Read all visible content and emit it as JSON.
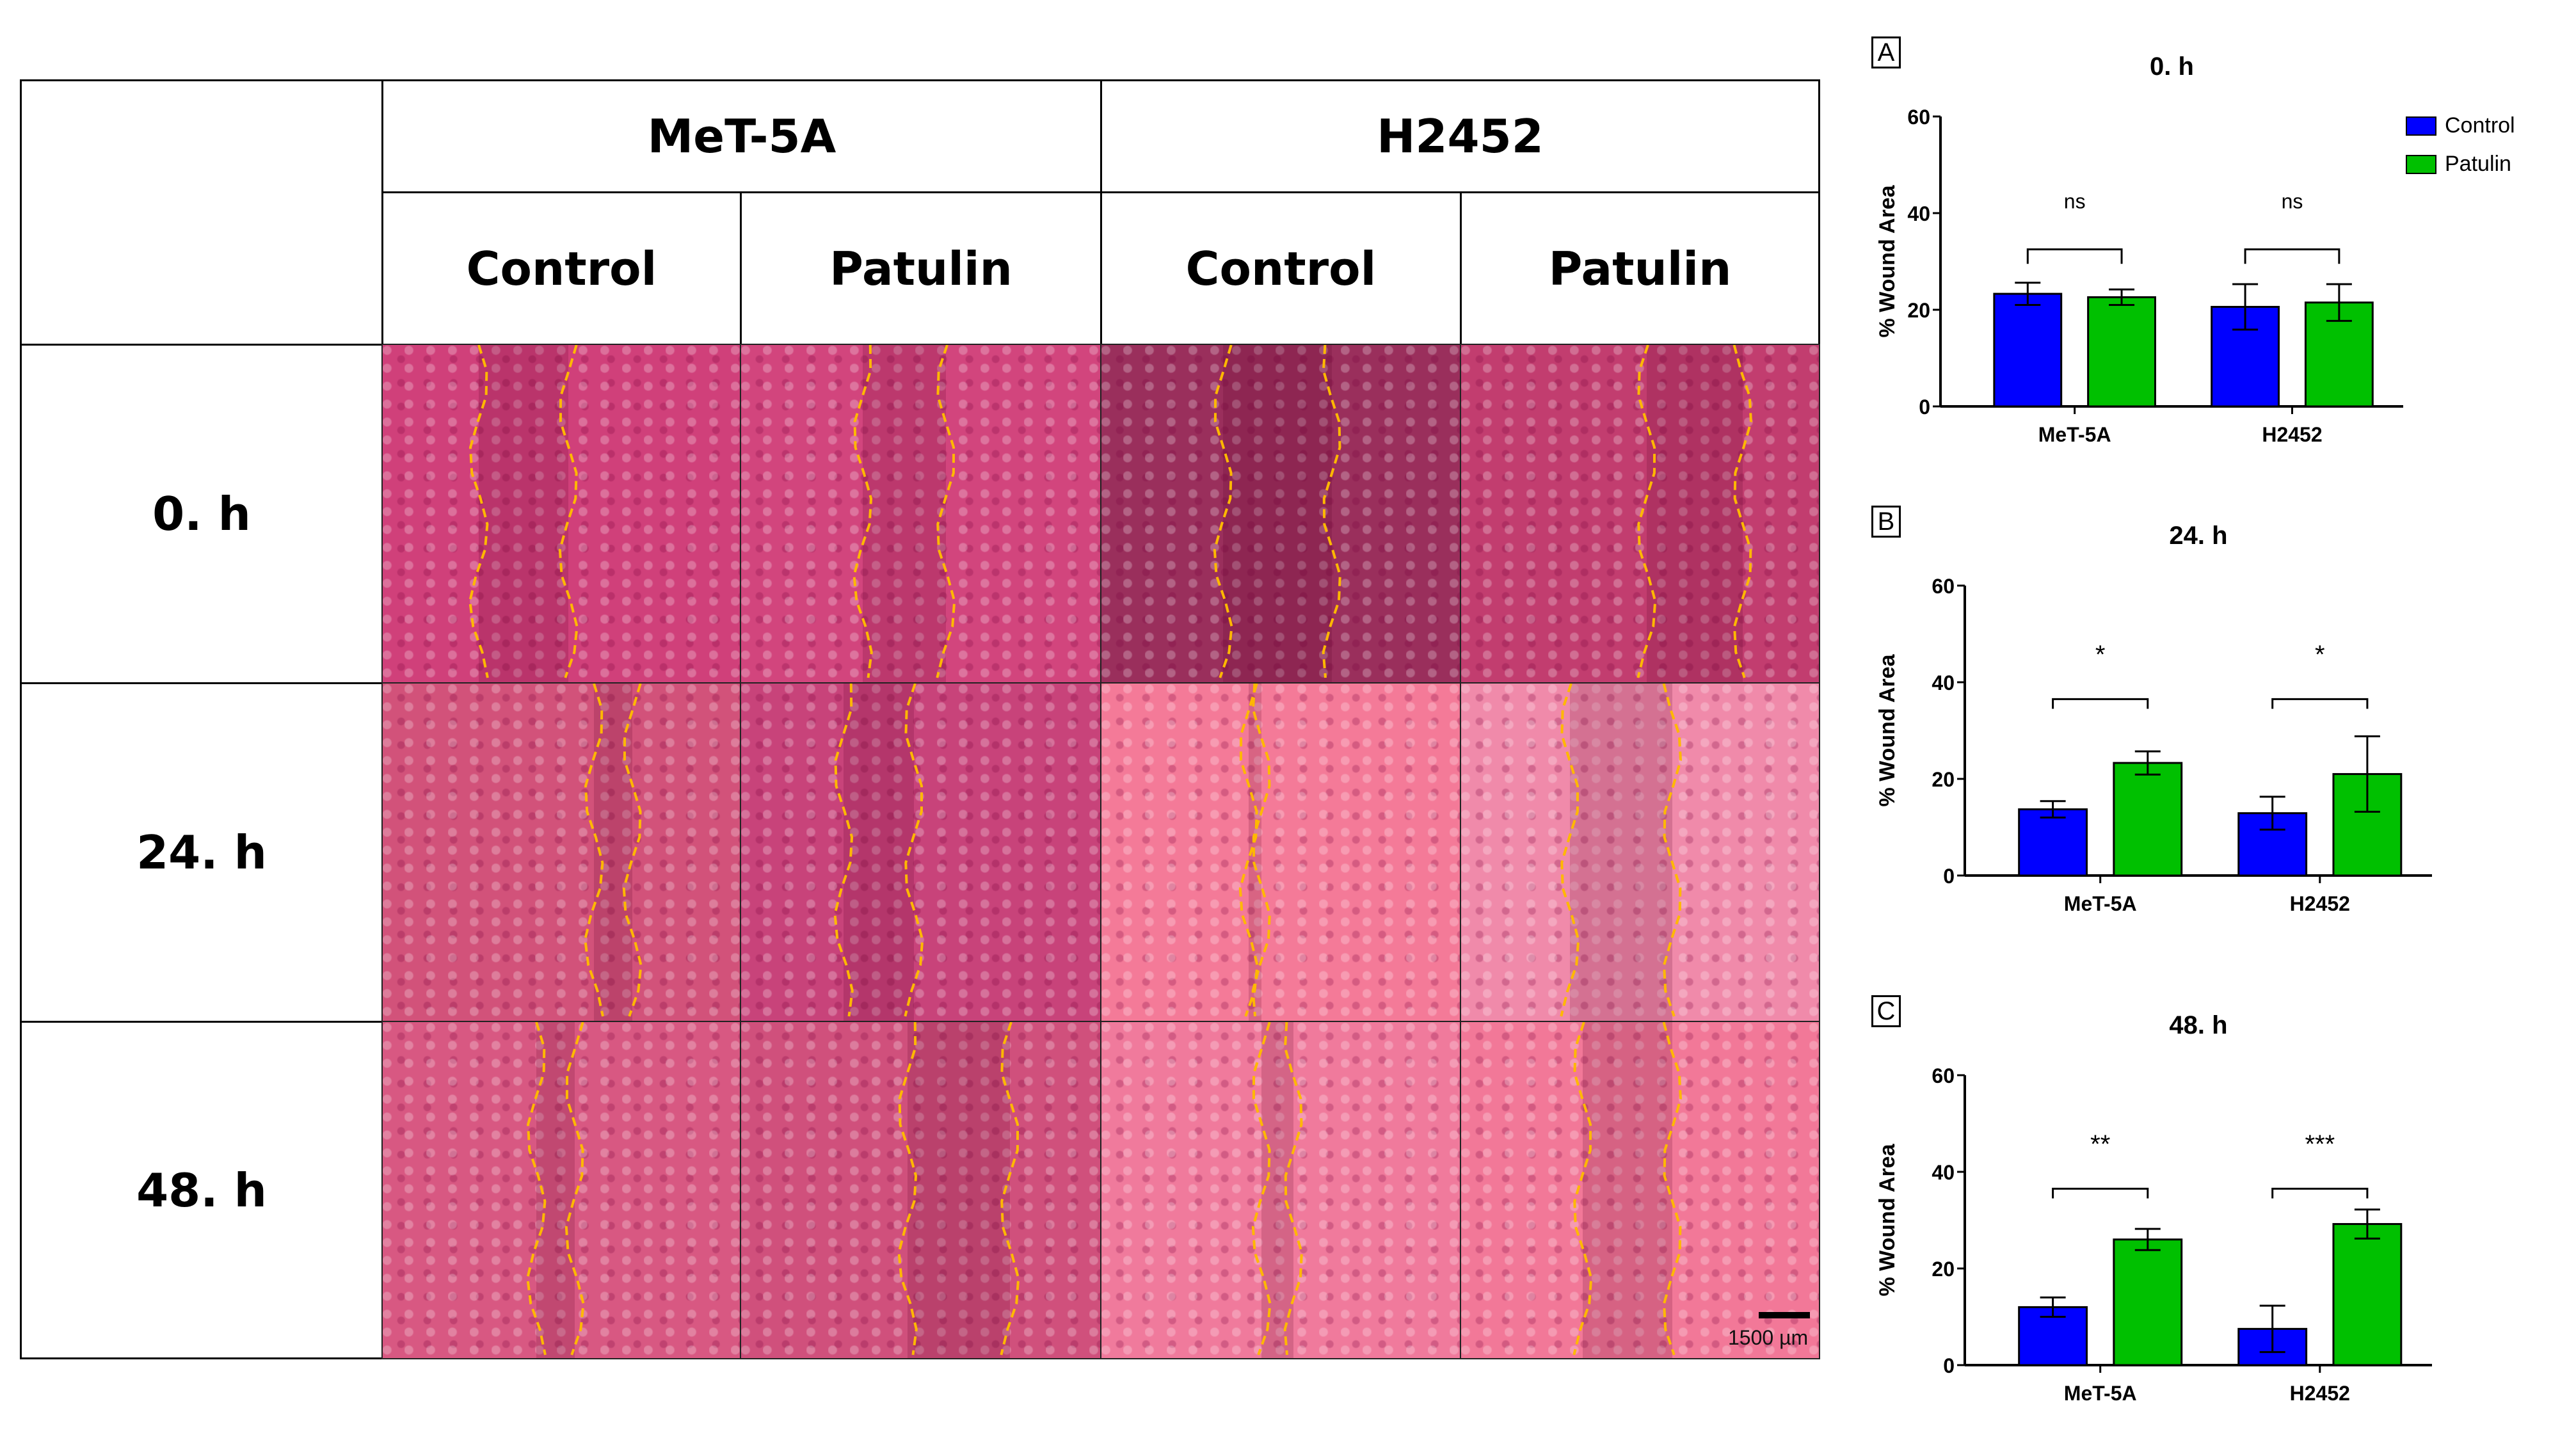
{
  "table": {
    "cell_lines": [
      "MeT-5A",
      "H2452"
    ],
    "treatments": [
      "Control",
      "Patulin",
      "Control",
      "Patulin"
    ],
    "timepoints": [
      "0. h",
      "24. h",
      "48. h"
    ],
    "scale_label": "1500 µm"
  },
  "colors": {
    "control": "#0000ff",
    "patulin": "#00c000"
  },
  "chart_data": [
    {
      "type": "bar",
      "panel": "A",
      "title": "0. h",
      "ylabel": "% Wound Area",
      "ylim": [
        0,
        60
      ],
      "yticks": [
        0,
        20,
        40,
        60
      ],
      "categories": [
        "MeT-5A",
        "H2452"
      ],
      "series": [
        {
          "name": "Control",
          "values": [
            23.3,
            20.6
          ],
          "errors": [
            2.3,
            4.7
          ]
        },
        {
          "name": "Patulin",
          "values": [
            22.6,
            21.5
          ],
          "errors": [
            1.6,
            3.8
          ]
        }
      ],
      "significance": [
        "ns",
        "ns"
      ],
      "legend": "top-right"
    },
    {
      "type": "bar",
      "panel": "B",
      "title": "24. h",
      "ylabel": "% Wound Area",
      "ylim": [
        0,
        60
      ],
      "yticks": [
        0,
        20,
        40,
        60
      ],
      "categories": [
        "MeT-5A",
        "H2452"
      ],
      "series": [
        {
          "name": "Control",
          "values": [
            13.7,
            12.9
          ],
          "errors": [
            1.7,
            3.4
          ]
        },
        {
          "name": "Patulin",
          "values": [
            23.3,
            21.0
          ],
          "errors": [
            2.4,
            7.8
          ]
        }
      ],
      "significance": [
        "*",
        "*"
      ]
    },
    {
      "type": "bar",
      "panel": "C",
      "title": "48. h",
      "ylabel": "% Wound Area",
      "ylim": [
        0,
        60
      ],
      "yticks": [
        0,
        20,
        40,
        60
      ],
      "categories": [
        "MeT-5A",
        "H2452"
      ],
      "series": [
        {
          "name": "Control",
          "values": [
            12.0,
            7.5
          ],
          "errors": [
            2.0,
            4.8
          ]
        },
        {
          "name": "Patulin",
          "values": [
            26.0,
            29.2
          ],
          "errors": [
            2.2,
            3.0
          ]
        }
      ],
      "significance": [
        "**",
        "***"
      ]
    }
  ]
}
